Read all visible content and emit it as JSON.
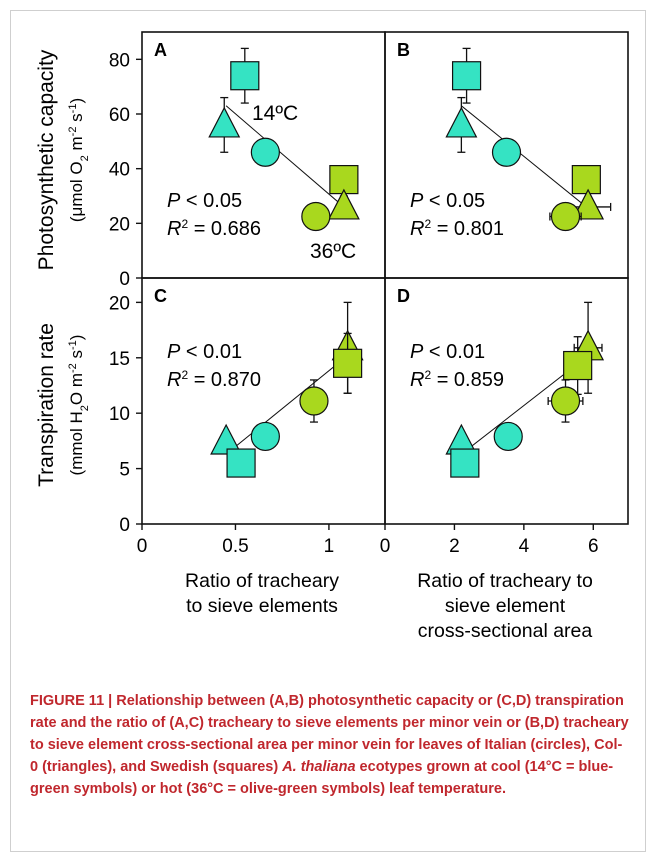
{
  "colors": {
    "cool": "#35e3c3",
    "hot": "#a9d81e",
    "stroke": "#111111",
    "caption": "#c0272d"
  },
  "series": [
    {
      "name": "Italian (circles)",
      "marker": "circle"
    },
    {
      "name": "Col-0 (triangles)",
      "marker": "triangle"
    },
    {
      "name": "Swedish (squares)",
      "marker": "square"
    }
  ],
  "chart_data": [
    {
      "panel": "A",
      "type": "scatter",
      "ylabel_line1": "Photosynthetic capacity",
      "ylabel_line2": "(μmol O",
      "ylabel_sub": "2",
      "ylabel_mid": " m",
      "ylabel_sup": "-2",
      "ylabel_end": " s",
      "ylabel_sup2": "-1",
      "ylabel_close": ")",
      "xlim": [
        0,
        1.3
      ],
      "ylim": [
        0,
        90
      ],
      "yticks": [
        "0",
        "20",
        "40",
        "60",
        "80"
      ],
      "ytick_values": [
        0,
        20,
        40,
        60,
        80
      ],
      "stat_p": "< 0.05",
      "stat_r2": "= 0.686",
      "annotations": {
        "cool": "14ºC",
        "hot": "36ºC"
      },
      "fit": {
        "x": [
          0.45,
          1.08
        ],
        "y": [
          63,
          26
        ]
      },
      "points": [
        {
          "series": "Swedish",
          "temp": "cool",
          "x": 0.55,
          "y": 74,
          "yerr": 10,
          "xerr": 0
        },
        {
          "series": "Col-0",
          "temp": "cool",
          "x": 0.44,
          "y": 56,
          "yerr": 10,
          "xerr": 0
        },
        {
          "series": "Italian",
          "temp": "cool",
          "x": 0.66,
          "y": 46,
          "yerr": 4,
          "xerr": 0
        },
        {
          "series": "Swedish",
          "temp": "hot",
          "x": 1.08,
          "y": 36,
          "yerr": 5,
          "xerr": 0
        },
        {
          "series": "Col-0",
          "temp": "hot",
          "x": 1.08,
          "y": 26,
          "yerr": 4,
          "xerr": 0
        },
        {
          "series": "Italian",
          "temp": "hot",
          "x": 0.93,
          "y": 22.5,
          "yerr": 2,
          "xerr": 0
        }
      ]
    },
    {
      "panel": "B",
      "type": "scatter",
      "xlim": [
        0,
        7
      ],
      "ylim": [
        0,
        90
      ],
      "stat_p": "< 0.05",
      "stat_r2": "= 0.801",
      "fit": {
        "x": [
          2.2,
          5.8
        ],
        "y": [
          63,
          26
        ]
      },
      "points": [
        {
          "series": "Swedish",
          "temp": "cool",
          "x": 2.35,
          "y": 74,
          "yerr": 10,
          "xerr": 0
        },
        {
          "series": "Col-0",
          "temp": "cool",
          "x": 2.2,
          "y": 56,
          "yerr": 10,
          "xerr": 0.15
        },
        {
          "series": "Italian",
          "temp": "cool",
          "x": 3.5,
          "y": 46,
          "yerr": 4,
          "xerr": 0.15
        },
        {
          "series": "Swedish",
          "temp": "hot",
          "x": 5.8,
          "y": 36,
          "yerr": 5,
          "xerr": 0
        },
        {
          "series": "Col-0",
          "temp": "hot",
          "x": 5.85,
          "y": 26,
          "yerr": 3,
          "xerr": 0.65
        },
        {
          "series": "Italian",
          "temp": "hot",
          "x": 5.2,
          "y": 22.5,
          "yerr": 2,
          "xerr": 0.45
        }
      ]
    },
    {
      "panel": "C",
      "type": "scatter",
      "ylabel_line1": "Transpiration rate",
      "ylabel_line2": "(mmol H",
      "ylabel_sub": "2",
      "ylabel_mid": "O m",
      "ylabel_sup": "-2",
      "ylabel_end": " s",
      "ylabel_sup2": "-1",
      "ylabel_close": ")",
      "xlabel_line1": "Ratio of tracheary",
      "xlabel_line2": "to sieve elements",
      "xlim": [
        0,
        1.3
      ],
      "ylim": [
        0,
        22.2
      ],
      "xticks": [
        "0",
        "0.5",
        "1"
      ],
      "xtick_values": [
        0,
        0.5,
        1
      ],
      "yticks": [
        "0",
        "5",
        "10",
        "15",
        "20"
      ],
      "ytick_values": [
        0,
        5,
        10,
        15,
        20
      ],
      "stat_p": "< 0.01",
      "stat_r2": "= 0.870",
      "fit": {
        "x": [
          0.45,
          1.1
        ],
        "y": [
          6.3,
          15.2
        ]
      },
      "points": [
        {
          "series": "Col-0",
          "temp": "hot",
          "x": 1.1,
          "y": 15.9,
          "yerr": 4.1,
          "xerr": 0
        },
        {
          "series": "Swedish",
          "temp": "hot",
          "x": 1.1,
          "y": 14.5,
          "yerr": 2.7,
          "xerr": 0
        },
        {
          "series": "Italian",
          "temp": "hot",
          "x": 0.92,
          "y": 11.1,
          "yerr": 1.9,
          "xerr": 0
        },
        {
          "series": "Italian",
          "temp": "cool",
          "x": 0.66,
          "y": 7.9,
          "yerr": 0,
          "xerr": 0
        },
        {
          "series": "Col-0",
          "temp": "cool",
          "x": 0.45,
          "y": 7.4,
          "yerr": 0,
          "xerr": 0
        },
        {
          "series": "Swedish",
          "temp": "cool",
          "x": 0.53,
          "y": 5.5,
          "yerr": 0,
          "xerr": 0
        }
      ]
    },
    {
      "panel": "D",
      "type": "scatter",
      "xlabel_line1": "Ratio of tracheary to",
      "xlabel_line2": "sieve element",
      "xlabel_line3": "cross-sectional area",
      "xlim": [
        0,
        7
      ],
      "ylim": [
        0,
        22.2
      ],
      "xticks": [
        "0",
        "2",
        "4",
        "6"
      ],
      "xtick_values": [
        0,
        2,
        4,
        6
      ],
      "stat_p": "< 0.01",
      "stat_r2": "= 0.859",
      "fit": {
        "x": [
          2.2,
          5.85
        ],
        "y": [
          6.3,
          15.2
        ]
      },
      "points": [
        {
          "series": "Col-0",
          "temp": "hot",
          "x": 5.85,
          "y": 15.9,
          "yerr": 4.1,
          "xerr": 0.4
        },
        {
          "series": "Swedish",
          "temp": "hot",
          "x": 5.55,
          "y": 14.3,
          "yerr": 2.6,
          "xerr": 0.35
        },
        {
          "series": "Italian",
          "temp": "hot",
          "x": 5.2,
          "y": 11.1,
          "yerr": 1.9,
          "xerr": 0.5
        },
        {
          "series": "Italian",
          "temp": "cool",
          "x": 3.55,
          "y": 7.9,
          "yerr": 0,
          "xerr": 0
        },
        {
          "series": "Col-0",
          "temp": "cool",
          "x": 2.2,
          "y": 7.4,
          "yerr": 0,
          "xerr": 0
        },
        {
          "series": "Swedish",
          "temp": "cool",
          "x": 2.3,
          "y": 5.5,
          "yerr": 0,
          "xerr": 0
        }
      ]
    }
  ],
  "caption": {
    "lead": "FIGURE 11 | Relationship between (A,B) photosynthetic capacity or (C,D) transpiration rate and the ratio of (A,C) tracheary to sieve elements per minor vein or (B,D) tracheary to sieve element cross-sectional area per minor vein for leaves of Italian (circles), Col-0 (triangles), and Swedish (squares) ",
    "species": "A. thaliana",
    "tail": " ecotypes grown at cool (14°C = blue-green symbols) or hot (36°C = olive-green symbols) leaf temperature."
  }
}
